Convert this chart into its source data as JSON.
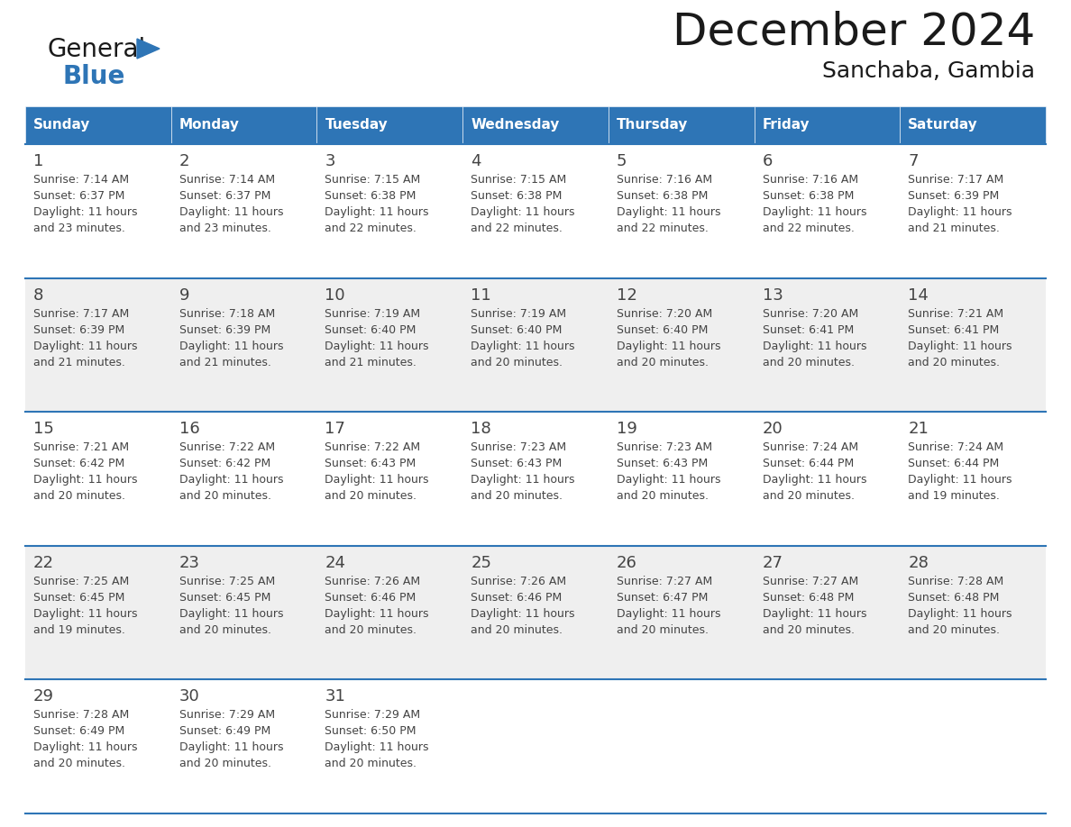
{
  "title": "December 2024",
  "subtitle": "Sanchaba, Gambia",
  "days_of_week": [
    "Sunday",
    "Monday",
    "Tuesday",
    "Wednesday",
    "Thursday",
    "Friday",
    "Saturday"
  ],
  "header_bg": "#2E75B6",
  "header_text": "#FFFFFF",
  "row_border": "#2E75B6",
  "cell_bg_white": "#FFFFFF",
  "cell_bg_gray": "#EFEFEF",
  "text_color": "#444444",
  "calendar_data": [
    [
      {
        "day": 1,
        "sunrise": "7:14 AM",
        "sunset": "6:37 PM",
        "dl_min": "23"
      },
      {
        "day": 2,
        "sunrise": "7:14 AM",
        "sunset": "6:37 PM",
        "dl_min": "23"
      },
      {
        "day": 3,
        "sunrise": "7:15 AM",
        "sunset": "6:38 PM",
        "dl_min": "22"
      },
      {
        "day": 4,
        "sunrise": "7:15 AM",
        "sunset": "6:38 PM",
        "dl_min": "22"
      },
      {
        "day": 5,
        "sunrise": "7:16 AM",
        "sunset": "6:38 PM",
        "dl_min": "22"
      },
      {
        "day": 6,
        "sunrise": "7:16 AM",
        "sunset": "6:38 PM",
        "dl_min": "22"
      },
      {
        "day": 7,
        "sunrise": "7:17 AM",
        "sunset": "6:39 PM",
        "dl_min": "21"
      }
    ],
    [
      {
        "day": 8,
        "sunrise": "7:17 AM",
        "sunset": "6:39 PM",
        "dl_min": "21"
      },
      {
        "day": 9,
        "sunrise": "7:18 AM",
        "sunset": "6:39 PM",
        "dl_min": "21"
      },
      {
        "day": 10,
        "sunrise": "7:19 AM",
        "sunset": "6:40 PM",
        "dl_min": "21"
      },
      {
        "day": 11,
        "sunrise": "7:19 AM",
        "sunset": "6:40 PM",
        "dl_min": "20"
      },
      {
        "day": 12,
        "sunrise": "7:20 AM",
        "sunset": "6:40 PM",
        "dl_min": "20"
      },
      {
        "day": 13,
        "sunrise": "7:20 AM",
        "sunset": "6:41 PM",
        "dl_min": "20"
      },
      {
        "day": 14,
        "sunrise": "7:21 AM",
        "sunset": "6:41 PM",
        "dl_min": "20"
      }
    ],
    [
      {
        "day": 15,
        "sunrise": "7:21 AM",
        "sunset": "6:42 PM",
        "dl_min": "20"
      },
      {
        "day": 16,
        "sunrise": "7:22 AM",
        "sunset": "6:42 PM",
        "dl_min": "20"
      },
      {
        "day": 17,
        "sunrise": "7:22 AM",
        "sunset": "6:43 PM",
        "dl_min": "20"
      },
      {
        "day": 18,
        "sunrise": "7:23 AM",
        "sunset": "6:43 PM",
        "dl_min": "20"
      },
      {
        "day": 19,
        "sunrise": "7:23 AM",
        "sunset": "6:43 PM",
        "dl_min": "20"
      },
      {
        "day": 20,
        "sunrise": "7:24 AM",
        "sunset": "6:44 PM",
        "dl_min": "20"
      },
      {
        "day": 21,
        "sunrise": "7:24 AM",
        "sunset": "6:44 PM",
        "dl_min": "19"
      }
    ],
    [
      {
        "day": 22,
        "sunrise": "7:25 AM",
        "sunset": "6:45 PM",
        "dl_min": "19"
      },
      {
        "day": 23,
        "sunrise": "7:25 AM",
        "sunset": "6:45 PM",
        "dl_min": "20"
      },
      {
        "day": 24,
        "sunrise": "7:26 AM",
        "sunset": "6:46 PM",
        "dl_min": "20"
      },
      {
        "day": 25,
        "sunrise": "7:26 AM",
        "sunset": "6:46 PM",
        "dl_min": "20"
      },
      {
        "day": 26,
        "sunrise": "7:27 AM",
        "sunset": "6:47 PM",
        "dl_min": "20"
      },
      {
        "day": 27,
        "sunrise": "7:27 AM",
        "sunset": "6:48 PM",
        "dl_min": "20"
      },
      {
        "day": 28,
        "sunrise": "7:28 AM",
        "sunset": "6:48 PM",
        "dl_min": "20"
      }
    ],
    [
      {
        "day": 29,
        "sunrise": "7:28 AM",
        "sunset": "6:49 PM",
        "dl_min": "20"
      },
      {
        "day": 30,
        "sunrise": "7:29 AM",
        "sunset": "6:49 PM",
        "dl_min": "20"
      },
      {
        "day": 31,
        "sunrise": "7:29 AM",
        "sunset": "6:50 PM",
        "dl_min": "20"
      },
      null,
      null,
      null,
      null
    ]
  ],
  "logo_color_general": "#1a1a1a",
  "logo_color_blue": "#2E75B6",
  "logo_triangle_color": "#2E75B6",
  "title_color": "#1a1a1a",
  "subtitle_color": "#1a1a1a"
}
